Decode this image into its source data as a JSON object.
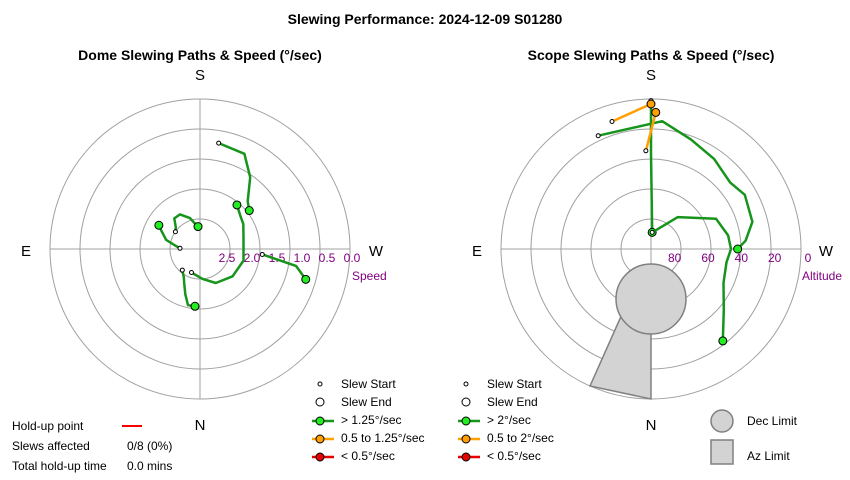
{
  "title": "Slewing Performance: 2024-12-09 S01280",
  "colors": {
    "grid": "#a0a0a0",
    "fast": "#16941b",
    "fast_marker": "#22ee22",
    "medium": "#ff9f00",
    "medium_marker": "#ff9f00",
    "slow": "#e60000",
    "limit_fill": "#d3d3d3",
    "limit_stroke": "#808080",
    "label_purple": "#800080",
    "holdup": "#ff0000"
  },
  "chart_data": [
    {
      "type": "polar-line",
      "title": "Dome Slewing Paths & Speed (°/sec)",
      "directions": {
        "top": "S",
        "bottom": "N",
        "left": "E",
        "right": "W"
      },
      "radial_axis": {
        "label": "Speed",
        "tick_labels": [
          "2.5",
          "2.0",
          "1.5",
          "1.0",
          "0.5",
          "0.0"
        ],
        "range": [
          0.0,
          3.0
        ],
        "note": "radius = 3.0 - speed"
      },
      "series": [
        {
          "points": [
            [
              170,
              0.85
            ],
            [
              155,
              0.9
            ],
            [
              145,
              1.25
            ],
            [
              135,
              1.65
            ],
            [
              128,
              1.75
            ]
          ],
          "speed_class": "fast"
        },
        {
          "points": [
            [
              85,
              1.75
            ],
            [
              80,
              1.05
            ],
            [
              74,
              0.8
            ]
          ],
          "speed_class": "fast"
        },
        {
          "points": [
            [
              235,
              2.4
            ],
            [
              228,
              2.35
            ],
            [
              220,
              2.2
            ],
            [
              210,
              2.2
            ],
            [
              198,
              2.35
            ],
            [
              190,
              2.5
            ],
            [
              185,
              2.55
            ]
          ],
          "speed_class": "fast"
        },
        {
          "points": [
            [
              320,
              2.45
            ],
            [
              330,
              2.35
            ],
            [
              335,
              2.25
            ],
            [
              342,
              2.05
            ],
            [
              348,
              1.85
            ],
            [
              355,
              1.85
            ]
          ],
          "speed_class": "fast"
        },
        {
          "points": [
            [
              340,
              2.5
            ],
            [
              5,
              2.4
            ],
            [
              25,
              2.25
            ],
            [
              50,
              2.15
            ],
            [
              75,
              2.1
            ],
            [
              105,
              2.1
            ],
            [
              120,
              2.0
            ],
            [
              130,
              1.95
            ],
            [
              140,
              1.85
            ]
          ],
          "speed_class": "fast"
        },
        {
          "points": [
            [
              268,
              2.6
            ],
            [
              262,
              2.5
            ],
            [
              255,
              2.3
            ],
            [
              245,
              2.15
            ],
            [
              240,
              2.05
            ]
          ],
          "speed_class": "fast"
        }
      ]
    },
    {
      "type": "polar-line",
      "title": "Scope Slewing Paths & Speed (°/sec)",
      "directions": {
        "top": "S",
        "bottom": "N",
        "left": "E",
        "right": "W"
      },
      "radial_axis": {
        "label": "Altitude",
        "tick_labels": [
          "80",
          "60",
          "40",
          "20",
          "0"
        ],
        "range": [
          90,
          0
        ]
      },
      "series": [
        {
          "points": [
            [
              180,
              1
            ],
            [
              180,
              33
            ],
            [
              176,
              80
            ]
          ],
          "speed_class": "fast"
        },
        {
          "points": [
            [
              176,
              80
            ],
            [
              140,
              65
            ],
            [
              115,
              47
            ],
            [
              100,
              43
            ],
            [
              90,
              42
            ],
            [
              80,
              44
            ],
            [
              65,
              42
            ],
            [
              50,
              33
            ],
            [
              38,
              20
            ]
          ],
          "speed_class": "fast"
        },
        {
          "points": [
            [
              205,
              15
            ],
            [
              175,
              13
            ],
            [
              160,
              20
            ],
            [
              145,
              24
            ],
            [
              130,
              28
            ],
            [
              120,
              25
            ],
            [
              105,
              27
            ],
            [
              95,
              33
            ],
            [
              90,
              38
            ]
          ],
          "speed_class": "fast"
        },
        {
          "points": [
            [
              197,
              10
            ],
            [
              180,
              3
            ]
          ],
          "speed_class": "medium"
        },
        {
          "points": [
            [
              183,
              31
            ],
            [
              178,
              8
            ]
          ],
          "speed_class": "medium"
        }
      ],
      "limits": {
        "dec_limit": {
          "center_angle": 0,
          "center_altitude": 60,
          "radius_alt": 14
        },
        "az_limit": {
          "az_range": [
            336,
            360
          ],
          "alt_range": [
            73,
            0
          ]
        }
      }
    }
  ],
  "left_legend": {
    "slew_start": "Slew Start",
    "slew_end": "Slew End",
    "fast": "> 1.25°/sec",
    "medium": "0.5 to 1.25°/sec",
    "slow": "< 0.5°/sec"
  },
  "right_legend": {
    "slew_start": "Slew Start",
    "slew_end": "Slew End",
    "fast": "> 2°/sec",
    "medium": "0.5 to 2°/sec",
    "slow": "< 0.5°/sec",
    "dec_limit": "Dec Limit",
    "az_limit": "Az Limit"
  },
  "holdup": {
    "point_label": "Hold-up point",
    "slews_label": "Slews affected",
    "slews_value": "0/8 (0%)",
    "time_label": "Total hold-up time",
    "time_value": "0.0 mins"
  }
}
